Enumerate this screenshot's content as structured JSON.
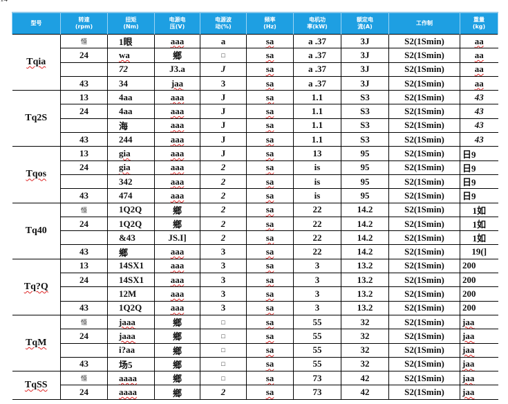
{
  "corner_text": "14",
  "header": [
    "型号",
    "转速\n(rpm)",
    "扭矩\n(Nm)",
    "电源电\n压(V)",
    "电源波\n动(%)",
    "频率\n(Hz)",
    "电机功\n率(kW)",
    "额定电\n流(A)",
    "工作制",
    "重量\n(kg)"
  ],
  "groups": [
    {
      "model": "Tqia",
      "rows": [
        [
          "恒",
          "1眼",
          "aaa",
          "a",
          "sa",
          "a .37",
          "3J",
          "S2(1Smin)",
          "aa"
        ],
        [
          "24",
          "wa",
          "鄉",
          "□",
          "sa",
          "a .37",
          "3J",
          "S2(1Smin)",
          "aa"
        ],
        [
          "",
          "72",
          "J3.a",
          "J",
          "sa",
          "a .37",
          "3J",
          "S2(1Smin)",
          "aa"
        ],
        [
          "43",
          "34",
          "jaa",
          "3",
          "sa",
          "a .37",
          "3J",
          "S2(1Smin)",
          "aa"
        ]
      ]
    },
    {
      "model": "Tq2S",
      "rows": [
        [
          "13",
          "4aa",
          "aaa",
          "J",
          "sa",
          "1.1",
          "S3",
          "S2(1Smin)",
          "43"
        ],
        [
          "24",
          "4aa",
          "aaa",
          "J",
          "sa",
          "1.1",
          "S3",
          "S2(1Smin)",
          "43"
        ],
        [
          "",
          "海",
          "aaa",
          "J",
          "sa",
          "1.1",
          "S3",
          "S2(1Smin)",
          "43"
        ],
        [
          "43",
          "244",
          "aaa",
          "J",
          "sa",
          "1.1",
          "S3",
          "S2(1Smin)",
          "43"
        ]
      ]
    },
    {
      "model": "Tqos",
      "rows": [
        [
          "13",
          "gia",
          "aaa",
          "J",
          "sa",
          "13",
          "95",
          "S2(1Smin)",
          "日9"
        ],
        [
          "24",
          "gia",
          "aaa",
          "2",
          "sa",
          "is",
          "95",
          "S2(1Smin)",
          "日9"
        ],
        [
          "",
          "342",
          "aaa",
          "2",
          "sa",
          "is",
          "95",
          "S2(1Smin)",
          "日9"
        ],
        [
          "43",
          "474",
          "aaa",
          "2",
          "sa",
          "is",
          "95",
          "S2(1Smin)",
          "日9"
        ]
      ]
    },
    {
      "model": "Tq40",
      "rows": [
        [
          "恒",
          "1Q2Q",
          "鄉",
          "2",
          "sa",
          "22",
          "14.2",
          "S2(1Smin)",
          "1如"
        ],
        [
          "24",
          "1Q2Q",
          "鄉",
          "2",
          "sa",
          "22",
          "14.2",
          "S2(1Smin)",
          "1如"
        ],
        [
          "",
          "&43",
          "JS.I]",
          "2",
          "sa",
          "22",
          "14.2",
          "S2(1Smin)",
          "1如"
        ],
        [
          "43",
          "鄉",
          "aaa",
          "3",
          "sa",
          "22",
          "14.2",
          "S2(1Smin)",
          "19(]"
        ]
      ]
    },
    {
      "model": "Tq?Q",
      "rows": [
        [
          "13",
          "14SX1",
          "aaa",
          "3",
          "sa",
          "3",
          "13.2",
          "S2(1Smin)",
          "200"
        ],
        [
          "24",
          "14SX1",
          "aaa",
          "3",
          "sa",
          "3",
          "13.2",
          "S2(1Smin)",
          "200"
        ],
        [
          "",
          "12M",
          "aaa",
          "3",
          "sa",
          "3",
          "13.2",
          "S2(1Smin)",
          "200"
        ],
        [
          "43",
          "1Q2Q",
          "aaa",
          "3",
          "sa",
          "3",
          "13.2",
          "S2(1Smin)",
          "200"
        ]
      ]
    },
    {
      "model": "TqM",
      "rows": [
        [
          "恒",
          "jaaa",
          "鄉",
          "□",
          "sa",
          "55",
          "32",
          "S2(1Smin)",
          "jaa"
        ],
        [
          "24",
          "jaaa",
          "鄉",
          "□",
          "sa",
          "55",
          "32",
          "S2(1Smin)",
          "jaa"
        ],
        [
          "",
          "i?aa",
          "鄉",
          "□",
          "sa",
          "55",
          "32",
          "S2(1Smin)",
          "jaa"
        ],
        [
          "43",
          "场5",
          "鄉",
          "□",
          "sa",
          "55",
          "32",
          "S2(1Smin)",
          "jaa"
        ]
      ]
    },
    {
      "model": "TqSS",
      "rows": [
        [
          "恒",
          "aaaa",
          "鄉",
          "□",
          "sa",
          "73",
          "42",
          "S2(1Smin)",
          "jaa"
        ],
        [
          "24",
          "aaaa",
          "鄉",
          "2",
          "sa",
          "73",
          "42",
          "S2(1Smin)",
          "jaa"
        ]
      ]
    }
  ]
}
